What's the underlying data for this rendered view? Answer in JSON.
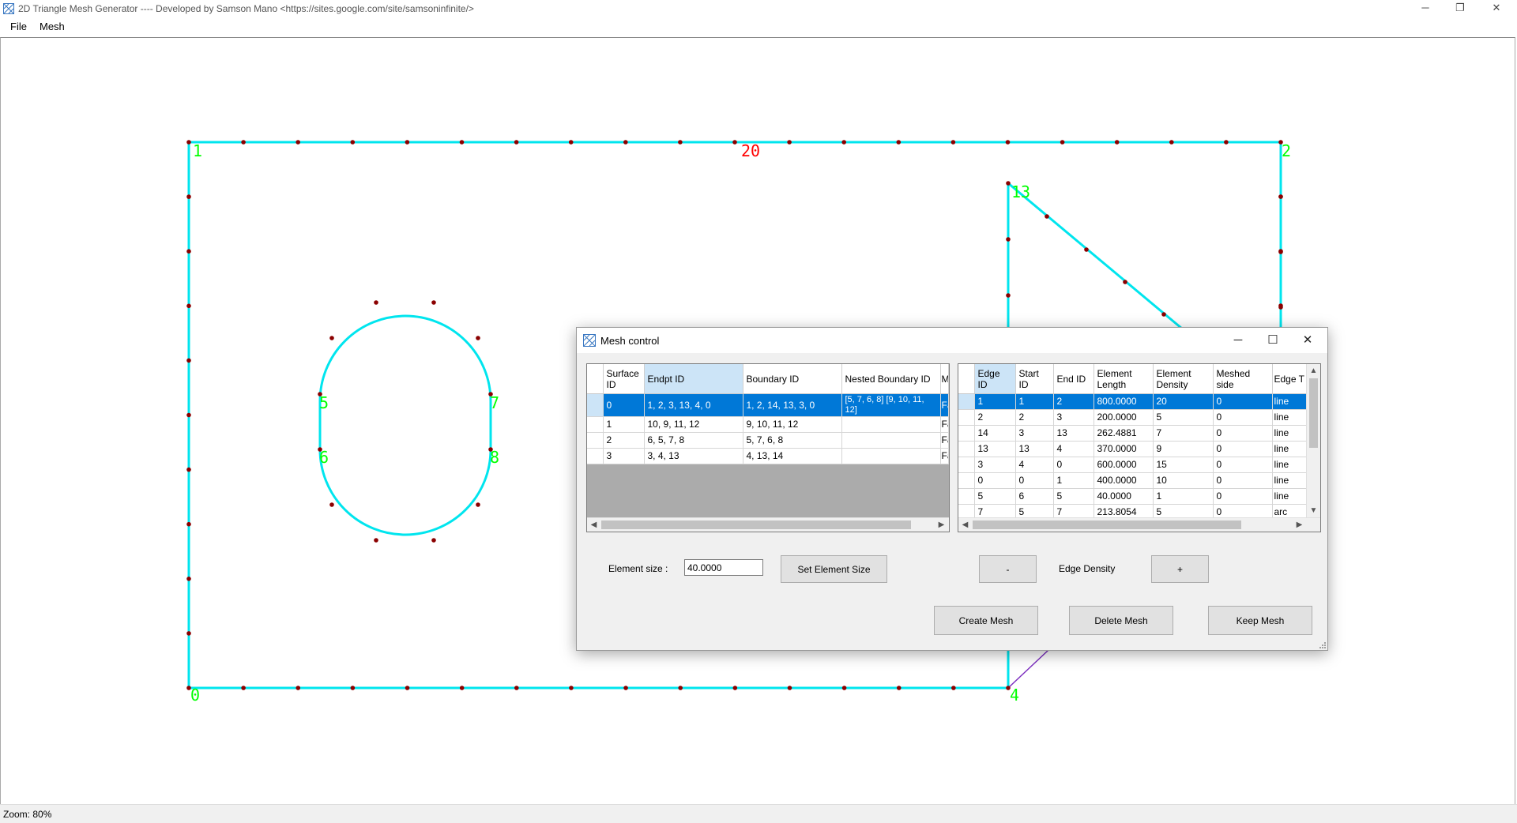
{
  "window": {
    "title": "2D Triangle Mesh Generator ---- Developed by Samson Mano <https://sites.google.com/site/samsoninfinite/>",
    "minimize": "─",
    "restore": "❐",
    "close": "✕"
  },
  "menu": {
    "file": "File",
    "mesh": "Mesh"
  },
  "canvas": {
    "boundary_color": "#00e5ee",
    "node_color": "#8b0000",
    "label_color": "#00ff00",
    "highlight_label_color": "#ff0000",
    "edge_color_alt": "#7b2cbf",
    "point_labels": [
      "1",
      "20",
      "2",
      "13",
      "5",
      "7",
      "6",
      "8",
      "0",
      "4"
    ]
  },
  "status": {
    "zoom": "Zoom: 80%"
  },
  "dialog": {
    "title": "Mesh control",
    "minimize": "─",
    "maximize": "☐",
    "close": "✕",
    "surface_table": {
      "headers": [
        "Surface ID",
        "Endpt ID",
        "Boundary ID",
        "Nested Boundary ID",
        "M B"
      ],
      "rows": [
        [
          "0",
          "1, 2, 3, 13, 4, 0",
          "1, 2, 14, 13, 3, 0",
          "[5, 7, 6, 8] [9, 10, 11, 12]",
          "Fa"
        ],
        [
          "1",
          "10, 9, 11, 12",
          "9, 10, 11, 12",
          "",
          "Fa"
        ],
        [
          "2",
          "6, 5, 7, 8",
          "5, 7, 6, 8",
          "",
          "Fa"
        ],
        [
          "3",
          "3, 4, 13",
          "4, 13, 14",
          "",
          "Fa"
        ]
      ]
    },
    "edge_table": {
      "headers": [
        "Edge ID",
        "Start ID",
        "End ID",
        "Element Length",
        "Element Density",
        "Meshed side",
        "Edge T"
      ],
      "rows": [
        [
          "1",
          "1",
          "2",
          "800.0000",
          "20",
          "0",
          "line"
        ],
        [
          "2",
          "2",
          "3",
          "200.0000",
          "5",
          "0",
          "line"
        ],
        [
          "14",
          "3",
          "13",
          "262.4881",
          "7",
          "0",
          "line"
        ],
        [
          "13",
          "13",
          "4",
          "370.0000",
          "9",
          "0",
          "line"
        ],
        [
          "3",
          "4",
          "0",
          "600.0000",
          "15",
          "0",
          "line"
        ],
        [
          "0",
          "0",
          "1",
          "400.0000",
          "10",
          "0",
          "line"
        ],
        [
          "5",
          "6",
          "5",
          "40.0000",
          "1",
          "0",
          "line"
        ],
        [
          "7",
          "5",
          "7",
          "213.8054",
          "5",
          "0",
          "arc"
        ]
      ]
    },
    "element_size_label": "Element size :",
    "element_size_value": "40.0000",
    "set_element_size": "Set Element Size",
    "minus": "-",
    "edge_density_label": "Edge Density",
    "plus": "+",
    "create_mesh": "Create Mesh",
    "delete_mesh": "Delete Mesh",
    "keep_mesh": "Keep Mesh"
  }
}
